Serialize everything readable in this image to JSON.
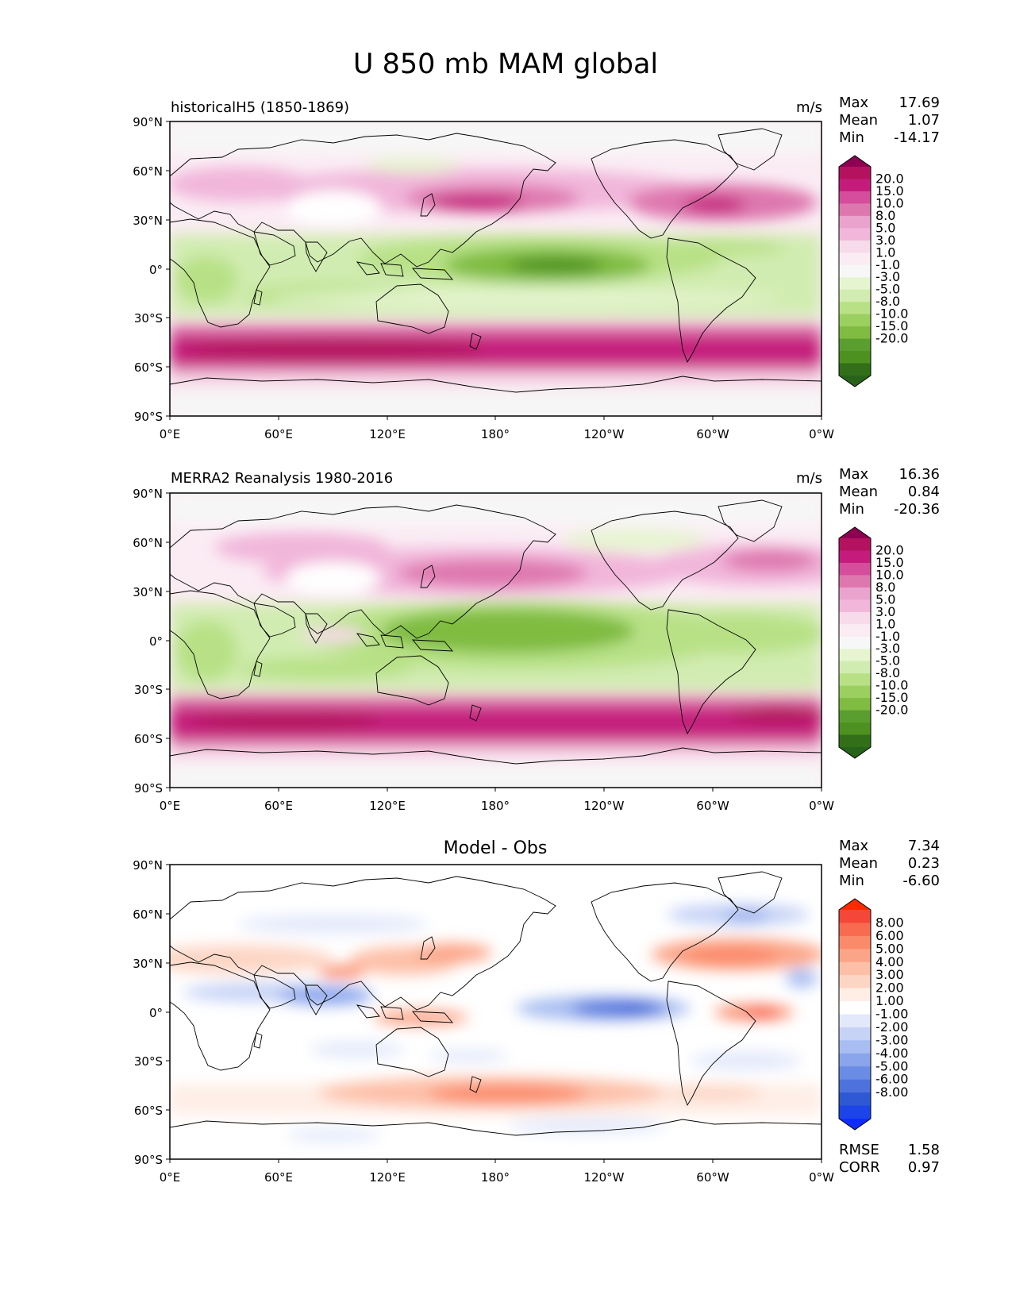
{
  "title": "U 850 mb MAM global",
  "lon_ticks": [
    "0°E",
    "60°E",
    "120°E",
    "180°",
    "120°W",
    "60°W",
    "0°W"
  ],
  "lat_ticks": [
    "90°N",
    "60°N",
    "30°N",
    "0°",
    "30°S",
    "60°S",
    "90°S"
  ],
  "panels": [
    {
      "id": "model",
      "left_label": "historicalH5 (1850-1869)",
      "center_label": "",
      "units": "m/s",
      "stats": {
        "Max": "17.69",
        "Mean": "1.07",
        "Min": "-14.17"
      },
      "colorbar": {
        "labels": [
          "20.0",
          "15.0",
          "10.0",
          "8.0",
          "5.0",
          "3.0",
          "1.0",
          "-1.0",
          "-3.0",
          "-5.0",
          "-8.0",
          "-10.0",
          "-15.0",
          "-20.0"
        ],
        "colors": [
          "#8e0152",
          "#b4125f",
          "#c51b7d",
          "#d54d9c",
          "#de77ae",
          "#eaa3cc",
          "#f1b6da",
          "#f8dbea",
          "#fbecf4",
          "#f7f7f7",
          "#e6f5d0",
          "#d1ecb1",
          "#b8e186",
          "#9bcf60",
          "#7fbc41",
          "#5a9e30",
          "#4d9221",
          "#326f18",
          "#276419"
        ]
      },
      "footer": null
    },
    {
      "id": "obs",
      "left_label": "MERRA2 Reanalysis 1980-2016",
      "center_label": "",
      "units": "m/s",
      "stats": {
        "Max": "16.36",
        "Mean": "0.84",
        "Min": "-20.36"
      },
      "colorbar": {
        "labels": [
          "20.0",
          "15.0",
          "10.0",
          "8.0",
          "5.0",
          "3.0",
          "1.0",
          "-1.0",
          "-3.0",
          "-5.0",
          "-8.0",
          "-10.0",
          "-15.0",
          "-20.0"
        ],
        "colors": [
          "#8e0152",
          "#b4125f",
          "#c51b7d",
          "#d54d9c",
          "#de77ae",
          "#eaa3cc",
          "#f1b6da",
          "#f8dbea",
          "#fbecf4",
          "#f7f7f7",
          "#e6f5d0",
          "#d1ecb1",
          "#b8e186",
          "#9bcf60",
          "#7fbc41",
          "#5a9e30",
          "#4d9221",
          "#326f18",
          "#276419"
        ]
      },
      "footer": null
    },
    {
      "id": "diff",
      "left_label": "",
      "center_label": "Model - Obs",
      "units": "",
      "stats": {
        "Max": "7.34",
        "Mean": "0.23",
        "Min": "-6.60"
      },
      "colorbar": {
        "labels": [
          "8.00",
          "6.00",
          "5.00",
          "4.00",
          "3.00",
          "2.00",
          "1.00",
          "-1.00",
          "-2.00",
          "-3.00",
          "-4.00",
          "-5.00",
          "-6.00",
          "-8.00"
        ],
        "colors": [
          "#ff2a00",
          "#f4473a",
          "#f86b50",
          "#fb8a6a",
          "#fca487",
          "#fdbfa7",
          "#fdd5c4",
          "#feeee6",
          "#ffffff",
          "#e3e9fb",
          "#c6d3f6",
          "#a8bdf1",
          "#8aa5ec",
          "#6b8ce5",
          "#4d72dd",
          "#2e58d4",
          "#1d44e8",
          "#0f2cff"
        ]
      },
      "footer": {
        "RMSE": "1.58",
        "CORR": "0.97"
      }
    }
  ]
}
